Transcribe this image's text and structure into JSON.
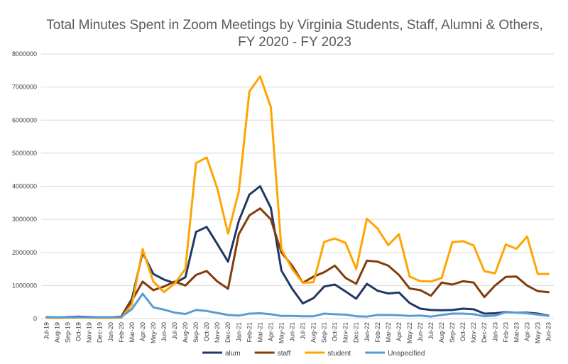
{
  "chart_data": {
    "type": "line",
    "title_lines": [
      "Total Minutes Spent in Zoom Meetings by Virginia Students, Staff, Alumni & Others,",
      "FY 2020 - FY 2023"
    ],
    "xlabel": "",
    "ylabel": "",
    "ylim": [
      0,
      8000000
    ],
    "yticks": [
      "0",
      "1000000",
      "2000000",
      "3000000",
      "4000000",
      "5000000",
      "6000000",
      "7000000",
      "8000000"
    ],
    "grid": true,
    "legend_position": "bottom",
    "categories": [
      "Jul-19",
      "Aug-19",
      "Sep-19",
      "Oct-19",
      "Nov-19",
      "Dec-19",
      "Jan-20",
      "Feb-20",
      "Mar-20",
      "Apr-20",
      "May-20",
      "Jun-20",
      "Jul-20",
      "Aug-20",
      "Sep-20",
      "Oct-20",
      "Nov-20",
      "Dec-20",
      "Jan-21",
      "Feb-21",
      "Mar-21",
      "Apr-21",
      "May-21",
      "Jun-21",
      "Jul-21",
      "Aug-21",
      "Sep-21",
      "Oct-21",
      "Nov-21",
      "Dec-21",
      "Jan-22",
      "Feb-22",
      "Mar-22",
      "Apr-22",
      "May-22",
      "Jun-22",
      "Jul-22",
      "Aug-22",
      "Sep-22",
      "Oct-22",
      "Nov-22",
      "Dec-22",
      "Jan-23",
      "Feb-23",
      "Mar-23",
      "Apr-23",
      "May-23",
      "Jun-23"
    ],
    "series": [
      {
        "name": "alum",
        "color": "#203864",
        "values": [
          40000,
          30000,
          50000,
          60000,
          50000,
          40000,
          40000,
          60000,
          600000,
          2000000,
          1350000,
          1180000,
          1070000,
          1250000,
          2620000,
          2770000,
          2250000,
          1720000,
          2950000,
          3750000,
          4000000,
          3350000,
          1450000,
          900000,
          460000,
          620000,
          970000,
          1030000,
          820000,
          600000,
          1050000,
          840000,
          760000,
          790000,
          470000,
          300000,
          260000,
          250000,
          260000,
          300000,
          280000,
          150000,
          160000,
          200000,
          180000,
          180000,
          150000,
          90000
        ]
      },
      {
        "name": "staff",
        "color": "#843C0C",
        "values": [
          30000,
          30000,
          30000,
          40000,
          40000,
          30000,
          30000,
          50000,
          550000,
          1120000,
          860000,
          970000,
          1120000,
          1000000,
          1320000,
          1440000,
          1120000,
          900000,
          2550000,
          3120000,
          3330000,
          3000000,
          2000000,
          1600000,
          1080000,
          1270000,
          1400000,
          1600000,
          1230000,
          1050000,
          1750000,
          1720000,
          1600000,
          1320000,
          910000,
          860000,
          690000,
          1090000,
          1030000,
          1130000,
          1090000,
          650000,
          1000000,
          1260000,
          1270000,
          1000000,
          830000,
          800000
        ]
      },
      {
        "name": "student",
        "color": "#FFA500",
        "values": [
          30000,
          20000,
          30000,
          40000,
          30000,
          20000,
          20000,
          30000,
          430000,
          2100000,
          1120000,
          800000,
          1060000,
          1500000,
          4700000,
          4870000,
          3920000,
          2570000,
          3840000,
          6870000,
          7320000,
          6400000,
          2100000,
          1500000,
          1080000,
          1100000,
          2320000,
          2420000,
          2290000,
          1500000,
          3020000,
          2720000,
          2220000,
          2550000,
          1270000,
          1130000,
          1120000,
          1230000,
          2310000,
          2340000,
          2210000,
          1430000,
          1370000,
          2240000,
          2110000,
          2480000,
          1350000,
          1350000
        ]
      },
      {
        "name": "Unspecified",
        "color": "#5B9BD5",
        "values": [
          50000,
          40000,
          40000,
          50000,
          40000,
          40000,
          40000,
          50000,
          290000,
          750000,
          340000,
          270000,
          180000,
          140000,
          260000,
          230000,
          170000,
          110000,
          90000,
          150000,
          160000,
          130000,
          80000,
          80000,
          70000,
          70000,
          150000,
          130000,
          120000,
          70000,
          60000,
          110000,
          110000,
          100000,
          80000,
          90000,
          60000,
          110000,
          150000,
          150000,
          130000,
          70000,
          90000,
          190000,
          180000,
          160000,
          120000,
          80000
        ]
      }
    ]
  }
}
